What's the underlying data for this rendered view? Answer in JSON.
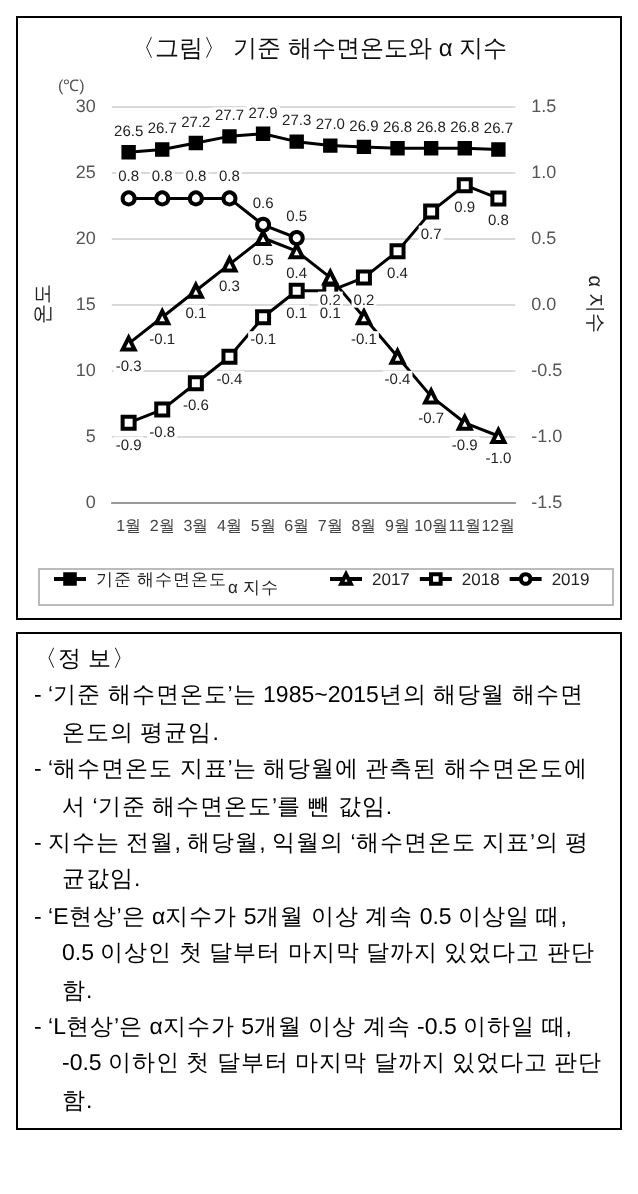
{
  "chart_data": {
    "type": "line",
    "title": "〈그림〉 기준 해수면온도와 α 지수",
    "categories": [
      "1월",
      "2월",
      "3월",
      "4월",
      "5월",
      "6월",
      "7월",
      "8월",
      "9월",
      "10월",
      "11월",
      "12월"
    ],
    "series": [
      {
        "name": "기준 해수면온도",
        "color": "#000000",
        "marker": "square",
        "values": [
          26.5,
          26.7,
          27.2,
          27.7,
          27.9,
          27.3,
          27.0,
          26.9,
          26.8,
          26.8,
          26.8,
          26.7
        ],
        "value_labels": [
          "26.5",
          "26.7",
          "27.2",
          "27.7",
          "27.9",
          "27.3",
          "27.0",
          "26.9",
          "26.8",
          "26.8",
          "26.8",
          "26.7"
        ]
      },
      {
        "name": "2017",
        "color": "#000000",
        "marker": "triangle",
        "axis": "y2",
        "values": [
          -0.3,
          -0.1,
          0.1,
          0.3,
          0.5,
          0.4,
          0.2,
          -0.1,
          -0.4,
          -0.7,
          -0.9,
          -1.0
        ],
        "value_labels": [
          "-0.3",
          "-0.1",
          "0.1",
          "0.3",
          "0.5",
          "0.4",
          "0.2",
          "-0.1",
          "-0.4",
          "-0.7",
          "-0.9",
          "-1.0"
        ]
      },
      {
        "name": "2018",
        "color": "#000000",
        "marker": "square",
        "axis": "y2",
        "values": [
          -0.9,
          -0.8,
          -0.6,
          -0.4,
          -0.1,
          0.1,
          0.1,
          0.2,
          0.4,
          0.7,
          0.9,
          0.8
        ],
        "value_labels": [
          "-0.9",
          "-0.8",
          "-0.6",
          "-0.4",
          "-0.1",
          "0.1",
          "0.1",
          "0.2",
          "0.4",
          "0.7",
          "0.9",
          "0.8"
        ]
      },
      {
        "name": "2019",
        "color": "#000000",
        "marker": "circle",
        "axis": "y2",
        "values": [
          0.8,
          0.8,
          0.8,
          0.8,
          0.6,
          0.5,
          null,
          null,
          null,
          null,
          null,
          null
        ],
        "value_labels": [
          "0.8",
          "0.8",
          "0.8",
          "0.8",
          "0.6",
          "0.5",
          null,
          null,
          null,
          null,
          null,
          null
        ]
      }
    ],
    "ylabel": "온도",
    "y2label": "α 지수",
    "legend_title": "α 지수",
    "ylim": [
      0,
      30
    ],
    "yticks": [
      0,
      5,
      10,
      15,
      20,
      25,
      30
    ],
    "y2lim": [
      -1.5,
      1.5
    ],
    "y2ticks": [
      -1.5,
      {
        "value": -1,
        "label": "-1.0"
      },
      -0.5,
      {
        "value": 0,
        "label": "0.0"
      },
      0.5,
      {
        "value": 1,
        "label": "1.0"
      },
      1.5
    ],
    "grid": "y",
    "legend": "bottom",
    "annotations": [
      "(℃)",
      "〈정  보〉",
      "- ‘기준 해수면온도’는 1985~2015년의 해당월 해수면온도의 평균임.",
      "- ‘해수면온도 지표’는 해당월에 관측된 해수면온도에서 ‘기준 해수면온도’를 뺀 값임.",
      "- 지수는 전월, 해당월, 익월의 ‘해수면온도 지표’의 평균값임.",
      "- ‘E현상’은 α지수가 5개월 이상 계속 0.5 이상일 때, 0.5 이상인 첫 달부터 마지막 달까지 있었다고 판단함.",
      "- ‘L현상’은 α지수가 5개월 이상 계속 -0.5 이하일 때, -0.5 이하인 첫 달부터 마지막 달까지 있었다고 판단함."
    ]
  }
}
